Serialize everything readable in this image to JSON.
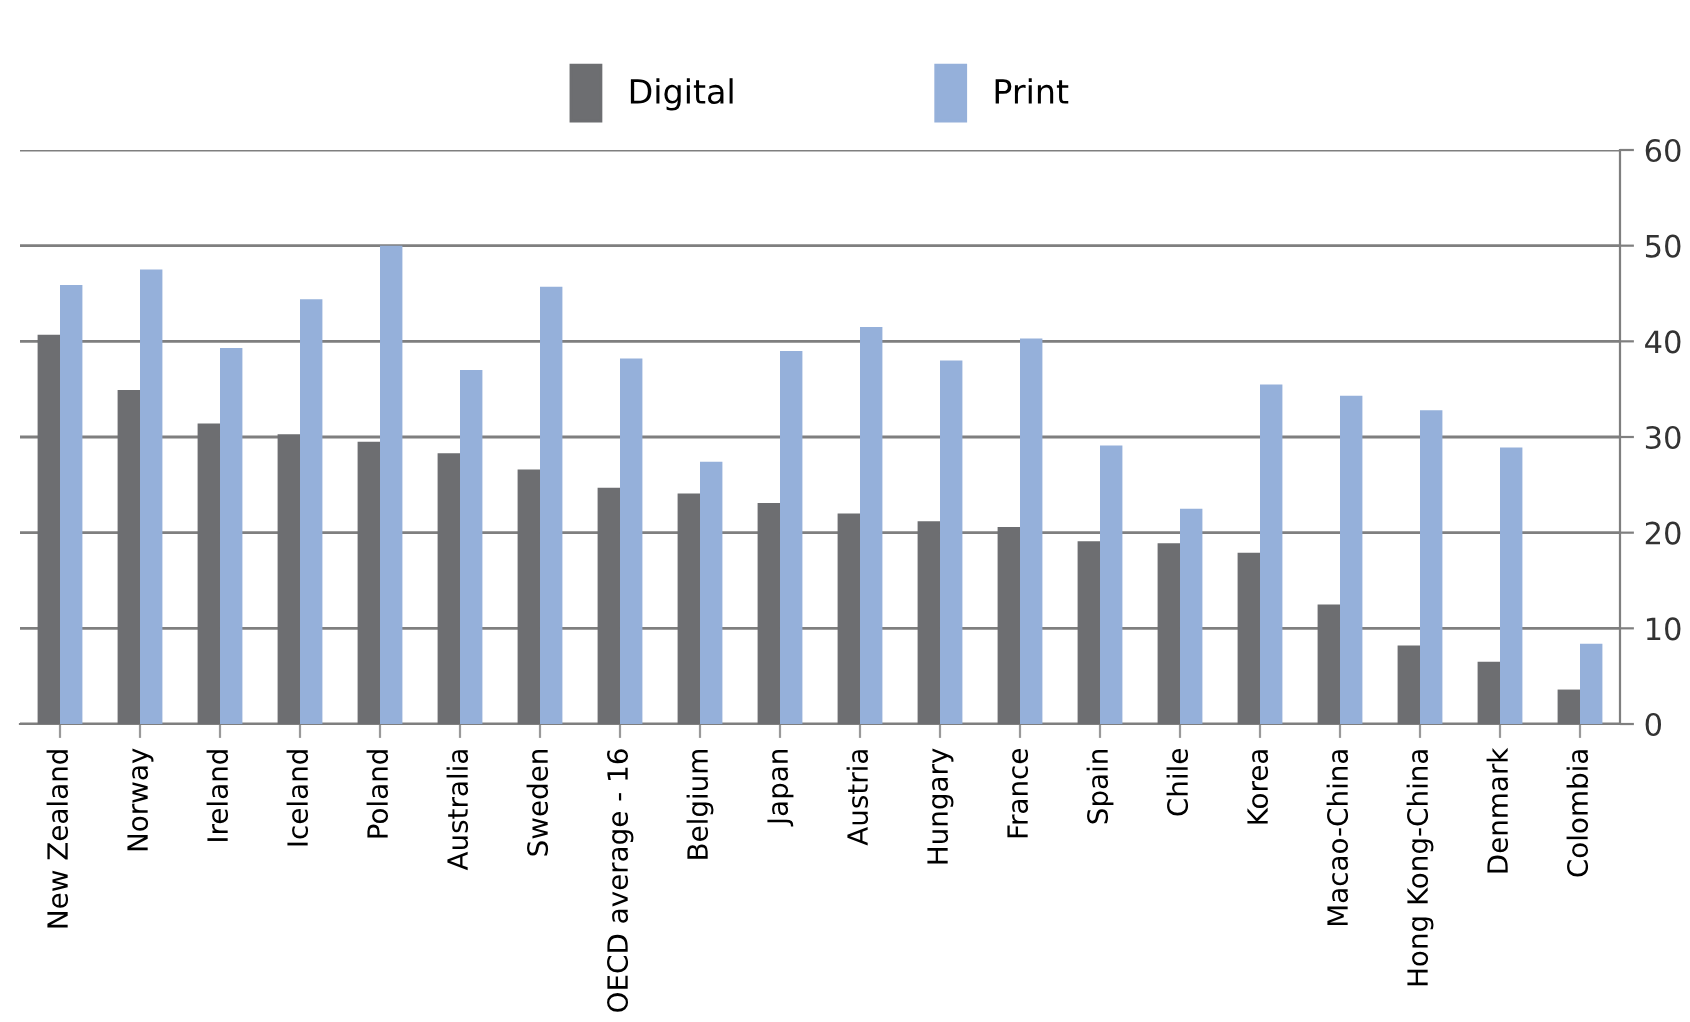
{
  "chart_data": {
    "type": "bar",
    "categories": [
      "New Zealand",
      "Norway",
      "Ireland",
      "Iceland",
      "Poland",
      "Australia",
      "Sweden",
      "OECD average - 16",
      "Belgium",
      "Japan",
      "Austria",
      "Hungary",
      "France",
      "Spain",
      "Chile",
      "Korea",
      "Macao-China",
      "Hong Kong-China",
      "Denmark",
      "Colombia"
    ],
    "series": [
      {
        "name": "Digital",
        "color": "#6d6e71",
        "values": [
          40.7,
          34.9,
          31.4,
          30.3,
          29.5,
          28.3,
          26.6,
          24.7,
          24.1,
          23.1,
          22.0,
          21.2,
          20.6,
          19.1,
          18.9,
          17.9,
          12.5,
          8.2,
          6.5,
          3.6
        ]
      },
      {
        "name": "Print",
        "color": "#95b0da",
        "values": [
          45.9,
          47.5,
          39.3,
          44.4,
          50.0,
          37.0,
          45.7,
          38.2,
          27.4,
          39.0,
          41.5,
          38.0,
          40.3,
          29.1,
          22.5,
          35.5,
          34.3,
          32.8,
          28.9,
          8.4
        ]
      }
    ],
    "ylim": [
      0,
      60
    ],
    "yticks": [
      0,
      10,
      20,
      30,
      40,
      50,
      60
    ],
    "grid": "y",
    "legend": "top"
  }
}
